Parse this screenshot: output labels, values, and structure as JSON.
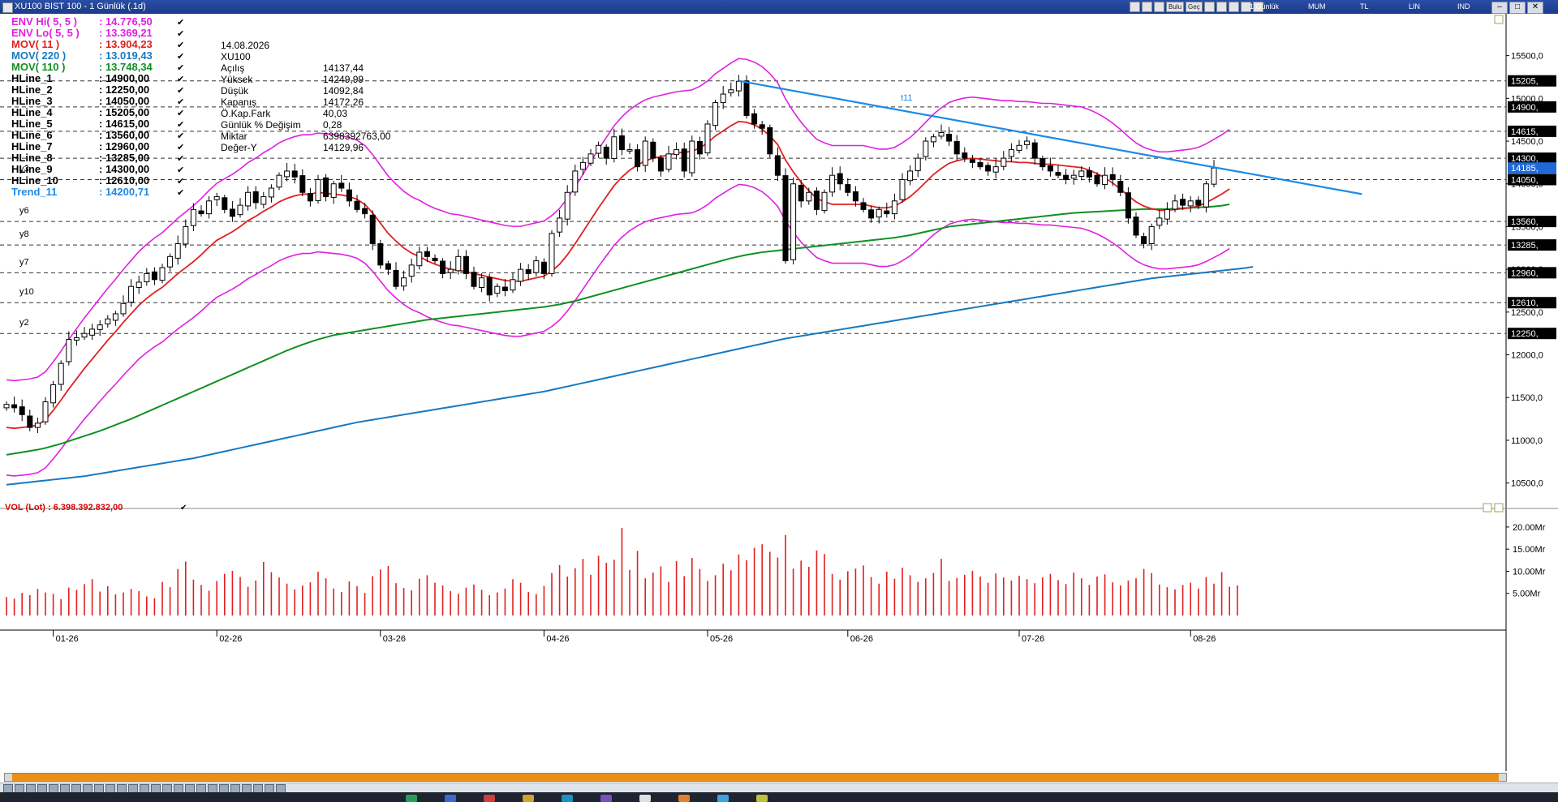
{
  "window": {
    "title": "XU100 BIST 100 - 1 Günlük (.1d)"
  },
  "toolbar": {
    "period": "1 Günlük",
    "modes": [
      "MUM",
      "TL",
      "LIN",
      "IND"
    ],
    "small_buttons": [
      "Bulu",
      "Geç"
    ]
  },
  "legend": [
    {
      "name": "ENV Hi( 5, 5 )",
      "value": ": 14.776,50",
      "color": "#e020e0"
    },
    {
      "name": "ENV Lo( 5, 5 )",
      "value": ": 13.369,21",
      "color": "#e020e0"
    },
    {
      "name": "MOV( 11 )",
      "value": ": 13.904,23",
      "color": "#e02020"
    },
    {
      "name": "MOV( 220 )",
      "value": ": 13.019,43",
      "color": "#1878c0"
    },
    {
      "name": "MOV( 110 )",
      "value": ": 13.748,34",
      "color": "#109020"
    },
    {
      "name": "HLine_1",
      "value": ": 14900,00",
      "color": "#000000"
    },
    {
      "name": "HLine_2",
      "value": ": 12250,00",
      "color": "#000000"
    },
    {
      "name": "HLine_3",
      "value": ": 14050,00",
      "color": "#000000"
    },
    {
      "name": "HLine_4",
      "value": ": 15205,00",
      "color": "#000000"
    },
    {
      "name": "HLine_5",
      "value": ": 14615,00",
      "color": "#000000"
    },
    {
      "name": "HLine_6",
      "value": ": 13560,00",
      "color": "#000000"
    },
    {
      "name": "HLine_7",
      "value": ": 12960,00",
      "color": "#000000"
    },
    {
      "name": "HLine_8",
      "value": ": 13285,00",
      "color": "#000000"
    },
    {
      "name": "HLine_9",
      "value": ": 14300,00",
      "color": "#000000"
    },
    {
      "name": "HLine_10",
      "value": ": 12610,00",
      "color": "#000000"
    },
    {
      "name": "Trend_11",
      "value": ": 14200,71",
      "color": "#1e8ae6"
    }
  ],
  "info": {
    "date": "14.08.2026",
    "symbol": "XU100",
    "rows": [
      {
        "label": "Açılış",
        "value": "14137,44"
      },
      {
        "label": "Yüksek",
        "value": "14249,99"
      },
      {
        "label": "Düşük",
        "value": "14092,84"
      },
      {
        "label": "Kapanış",
        "value": "14172,26"
      },
      {
        "label": "Ö.Kap.Fark",
        "value": "40,03"
      },
      {
        "label": "Günlük % Değişim",
        "value": "0,28"
      },
      {
        "label": "Miktar",
        "value": "6398392763,00"
      },
      {
        "label": "Değer-Y",
        "value": "14129,96"
      }
    ]
  },
  "volume_legend": "VOL (Lot) : 6.398.392.832,00",
  "chart_data": {
    "type": "candlestick",
    "x_tick_labels": [
      "01-26",
      "02-26",
      "03-26",
      "04-26",
      "05-26",
      "06-26",
      "07-26",
      "08-26"
    ],
    "x_tick_index": [
      6,
      27,
      48,
      69,
      90,
      108,
      130,
      152
    ],
    "ylim": [
      10250,
      15800
    ],
    "y_tick_values": [
      10500,
      11000,
      11500,
      12000,
      12500,
      13000,
      13500,
      14000,
      14500,
      15000,
      15500
    ],
    "y_tick_labels": [
      "10500,0",
      "11000,0",
      "11500,0",
      "12000,0",
      "12500,0",
      "13000,0",
      "13500,0",
      "14000,0",
      "14500,0",
      "15000,0",
      "15500,0"
    ],
    "close_price_label": "14185,",
    "hlines": [
      {
        "name": "HLine_1",
        "value": 14900,
        "label": "14900,",
        "short": ""
      },
      {
        "name": "HLine_2",
        "value": 12250,
        "label": "12250,",
        "short": "y2"
      },
      {
        "name": "HLine_3",
        "value": 14050,
        "label": "14050,",
        "short": "y3"
      },
      {
        "name": "HLine_4",
        "value": 15205,
        "label": "15205,",
        "short": ""
      },
      {
        "name": "HLine_5",
        "value": 14615,
        "label": "14615,",
        "short": ""
      },
      {
        "name": "HLine_6",
        "value": 13560,
        "label": "13560,",
        "short": "y6"
      },
      {
        "name": "HLine_7",
        "value": 12960,
        "label": "12960,",
        "short": "y7"
      },
      {
        "name": "HLine_8",
        "value": 13285,
        "label": "13285,",
        "short": "y8"
      },
      {
        "name": "HLine_9",
        "value": 14300,
        "label": "14300,",
        "short": ""
      },
      {
        "name": "HLine_10",
        "value": 12610,
        "label": "12610,",
        "short": "y10"
      }
    ],
    "trend": {
      "label": "t11",
      "from": [
        94,
        15205
      ],
      "to": [
        174,
        13880
      ],
      "color": "#1e8ae6"
    },
    "closes": [
      11420,
      11380,
      11300,
      11150,
      11200,
      11450,
      11650,
      11900,
      12180,
      12200,
      12250,
      12300,
      12350,
      12420,
      12480,
      12600,
      12800,
      12850,
      12950,
      12880,
      13020,
      13150,
      13300,
      13500,
      13700,
      13650,
      13800,
      13850,
      13700,
      13620,
      13750,
      13900,
      13780,
      13850,
      13950,
      14100,
      14150,
      14080,
      13900,
      13800,
      14050,
      13850,
      14000,
      13950,
      13800,
      13700,
      13650,
      13300,
      13050,
      13000,
      12800,
      12900,
      13050,
      13200,
      13150,
      13100,
      12950,
      13000,
      13150,
      12950,
      12800,
      12900,
      12700,
      12800,
      12750,
      12880,
      13000,
      12950,
      13100,
      12950,
      13420,
      13600,
      13900,
      14150,
      14250,
      14350,
      14450,
      14300,
      14550,
      14400,
      14400,
      14200,
      14500,
      14300,
      14150,
      14350,
      14400,
      14150,
      14500,
      14350,
      14700,
      14950,
      15050,
      15100,
      15200,
      14800,
      14700,
      14650,
      14350,
      14100,
      13100,
      14000,
      13800,
      13900,
      13700,
      13900,
      14100,
      14000,
      13900,
      13800,
      13700,
      13600,
      13700,
      13650,
      13800,
      14050,
      14150,
      14300,
      14500,
      14550,
      14600,
      14500,
      14350,
      14300,
      14250,
      14200,
      14150,
      14200,
      14300,
      14400,
      14450,
      14500,
      14300,
      14200,
      14150,
      14100,
      14050,
      14100,
      14150,
      14080,
      14000,
      14100,
      14050,
      13900,
      13600,
      13400,
      13300,
      13500,
      13600,
      13700,
      13800,
      13750,
      13800,
      13750,
      14000,
      14185
    ],
    "mov11": [
      11150,
      11140,
      11150,
      11160,
      11180,
      11240,
      11350,
      11470,
      11600,
      11720,
      11840,
      11950,
      12060,
      12170,
      12270,
      12380,
      12480,
      12580,
      12660,
      12730,
      12790,
      12870,
      12950,
      13020,
      13090,
      13170,
      13260,
      13340,
      13390,
      13440,
      13500,
      13570,
      13620,
      13680,
      13730,
      13790,
      13830,
      13860,
      13880,
      13880,
      13900,
      13890,
      13880,
      13870,
      13850,
      13820,
      13760,
      13660,
      13540,
      13420,
      13330,
      13250,
      13190,
      13150,
      13100,
      13060,
      13030,
      13000,
      12990,
      12970,
      12950,
      12930,
      12910,
      12890,
      12870,
      12860,
      12860,
      12880,
      12900,
      12920,
      12980,
      13060,
      13170,
      13300,
      13440,
      13580,
      13720,
      13850,
      13980,
      14080,
      14160,
      14220,
      14270,
      14300,
      14320,
      14340,
      14360,
      14370,
      14380,
      14420,
      14480,
      14560,
      14620,
      14680,
      14730,
      14720,
      14690,
      14640,
      14560,
      14460,
      14280,
      14140,
      14020,
      13920,
      13830,
      13790,
      13760,
      13760,
      13760,
      13760,
      13760,
      13740,
      13720,
      13720,
      13740,
      13790,
      13850,
      13930,
      14020,
      14110,
      14180,
      14240,
      14270,
      14290,
      14300,
      14290,
      14280,
      14270,
      14260,
      14260,
      14250,
      14250,
      14240,
      14230,
      14230,
      14220,
      14210,
      14200,
      14190,
      14160,
      14120,
      14070,
      14010,
      13940,
      13860,
      13790,
      13740,
      13710,
      13690,
      13690,
      13700,
      13710,
      13720,
      13740,
      13780,
      13830,
      13880,
      13940
    ],
    "mov110": [
      10830,
      10845,
      10860,
      10875,
      10890,
      10910,
      10935,
      10960,
      10990,
      11020,
      11050,
      11080,
      11110,
      11145,
      11180,
      11215,
      11250,
      11290,
      11330,
      11370,
      11410,
      11450,
      11490,
      11530,
      11570,
      11610,
      11650,
      11690,
      11730,
      11770,
      11810,
      11850,
      11890,
      11930,
      11970,
      12010,
      12050,
      12085,
      12120,
      12150,
      12180,
      12205,
      12230,
      12245,
      12260,
      12275,
      12290,
      12305,
      12320,
      12335,
      12350,
      12365,
      12380,
      12395,
      12410,
      12420,
      12430,
      12440,
      12450,
      12460,
      12470,
      12480,
      12490,
      12500,
      12510,
      12520,
      12530,
      12540,
      12550,
      12560,
      12575,
      12590,
      12610,
      12630,
      12655,
      12680,
      12705,
      12730,
      12755,
      12780,
      12805,
      12830,
      12855,
      12880,
      12905,
      12930,
      12955,
      12980,
      13005,
      13030,
      13055,
      13080,
      13105,
      13130,
      13150,
      13170,
      13185,
      13200,
      13210,
      13220,
      13230,
      13240,
      13250,
      13260,
      13270,
      13280,
      13290,
      13300,
      13310,
      13320,
      13330,
      13340,
      13350,
      13360,
      13370,
      13385,
      13400,
      13420,
      13440,
      13460,
      13480,
      13500,
      13510,
      13520,
      13530,
      13540,
      13550,
      13560,
      13570,
      13580,
      13590,
      13600,
      13610,
      13620,
      13630,
      13640,
      13650,
      13660,
      13665,
      13670,
      13675,
      13680,
      13685,
      13690,
      13695,
      13700,
      13705,
      13705,
      13705,
      13705,
      13710,
      13715,
      13720,
      13725,
      13730,
      13735,
      13745,
      13760
    ],
    "mov220": [
      10480,
      10490,
      10500,
      10510,
      10520,
      10530,
      10540,
      10550,
      10560,
      10570,
      10580,
      10595,
      10610,
      10625,
      10640,
      10655,
      10670,
      10685,
      10700,
      10715,
      10730,
      10745,
      10760,
      10775,
      10790,
      10810,
      10830,
      10850,
      10870,
      10890,
      10910,
      10930,
      10950,
      10970,
      10990,
      11010,
      11030,
      11050,
      11070,
      11090,
      11110,
      11130,
      11150,
      11170,
      11190,
      11210,
      11225,
      11240,
      11255,
      11270,
      11285,
      11300,
      11315,
      11330,
      11345,
      11360,
      11375,
      11390,
      11405,
      11420,
      11435,
      11450,
      11465,
      11480,
      11495,
      11510,
      11525,
      11540,
      11555,
      11570,
      11590,
      11610,
      11630,
      11650,
      11670,
      11690,
      11710,
      11730,
      11750,
      11770,
      11790,
      11810,
      11830,
      11850,
      11870,
      11890,
      11910,
      11930,
      11950,
      11970,
      11990,
      12010,
      12030,
      12050,
      12070,
      12090,
      12110,
      12130,
      12150,
      12170,
      12190,
      12205,
      12220,
      12235,
      12250,
      12265,
      12280,
      12295,
      12310,
      12325,
      12340,
      12355,
      12370,
      12385,
      12400,
      12415,
      12430,
      12445,
      12460,
      12475,
      12490,
      12505,
      12520,
      12535,
      12550,
      12565,
      12580,
      12595,
      12610,
      12625,
      12640,
      12655,
      12670,
      12685,
      12700,
      12715,
      12730,
      12745,
      12760,
      12775,
      12790,
      12805,
      12820,
      12835,
      12850,
      12865,
      12880,
      12895,
      12905,
      12915,
      12925,
      12935,
      12945,
      12955,
      12965,
      12975,
      12985,
      12995,
      13005,
      13015,
      13030
    ],
    "volume": {
      "ylim": [
        0,
        22
      ],
      "y_tick_values": [
        5,
        10,
        15,
        20
      ],
      "y_tick_labels": [
        "5.00Mr",
        "10.00Mr",
        "15.00Mr",
        "20.00Mr"
      ],
      "values": [
        4.2,
        3.8,
        5.1,
        4.6,
        6.0,
        5.2,
        4.9,
        3.7,
        6.3,
        5.8,
        7.1,
        8.2,
        5.4,
        6.6,
        4.8,
        5.2,
        6.0,
        5.5,
        4.3,
        3.9,
        7.6,
        6.4,
        10.5,
        12.2,
        8.1,
        6.9,
        5.6,
        7.8,
        9.4,
        10.1,
        8.7,
        6.5,
        7.9,
        12.1,
        9.8,
        8.6,
        7.2,
        5.9,
        6.8,
        7.5,
        9.9,
        8.4,
        6.1,
        5.3,
        7.7,
        6.6,
        5.1,
        8.9,
        10.4,
        11.2,
        7.3,
        6.2,
        5.7,
        8.3,
        9.1,
        7.4,
        6.8,
        5.5,
        4.9,
        6.3,
        7.0,
        5.8,
        4.6,
        5.2,
        6.1,
        8.2,
        7.4,
        5.3,
        4.8,
        6.7,
        9.6,
        11.4,
        8.8,
        10.7,
        12.8,
        9.2,
        13.5,
        11.9,
        12.6,
        19.8,
        10.3,
        14.6,
        8.4,
        9.7,
        11.1,
        7.6,
        12.3,
        8.9,
        13.0,
        10.5,
        7.8,
        9.1,
        11.7,
        10.2,
        13.8,
        12.5,
        15.3,
        16.1,
        14.4,
        13.1,
        18.2,
        10.6,
        12.4,
        11.0,
        14.7,
        13.9,
        9.4,
        8.1,
        10.0,
        10.6,
        11.3,
        8.7,
        7.2,
        9.9,
        8.3,
        10.8,
        9.1,
        7.6,
        8.4,
        9.6,
        12.8,
        7.8,
        8.5,
        9.2,
        10.1,
        8.8,
        7.4,
        9.5,
        8.6,
        7.9,
        9.0,
        8.2,
        7.3,
        8.6,
        9.4,
        8.0,
        7.1,
        9.7,
        8.4,
        6.9,
        8.8,
        9.3,
        7.5,
        6.8,
        7.9,
        8.4,
        10.5,
        9.6,
        7.0,
        6.4,
        5.9,
        6.9,
        7.4,
        6.1,
        8.7,
        7.2,
        9.8,
        6.5,
        6.8
      ]
    }
  }
}
